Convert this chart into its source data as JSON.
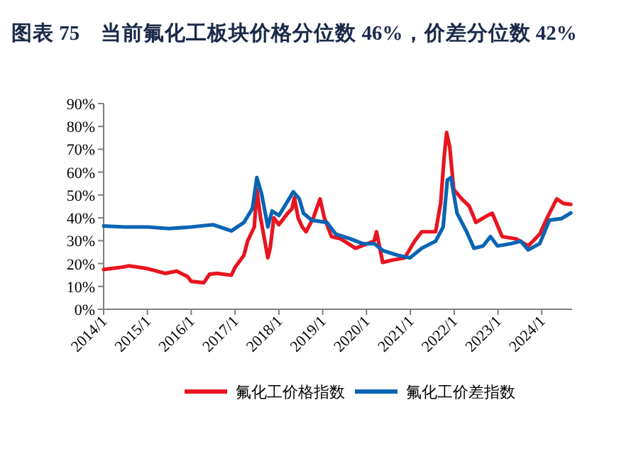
{
  "chart_data": {
    "type": "line",
    "title": "图表 75　当前氟化工板块价格分位数 46%，价差分位数 42%",
    "xlim": [
      "2014-01-01",
      "2024-09-10"
    ],
    "xticks": [
      {
        "value": "2014-01-01",
        "label": "2014/1"
      },
      {
        "value": "2015-01-01",
        "label": "2015/1"
      },
      {
        "value": "2016-01-01",
        "label": "2016/1"
      },
      {
        "value": "2017-01-01",
        "label": "2017/1"
      },
      {
        "value": "2018-01-01",
        "label": "2018/1"
      },
      {
        "value": "2019-01-01",
        "label": "2019/1"
      },
      {
        "value": "2020-01-01",
        "label": "2020/1"
      },
      {
        "value": "2021-01-01",
        "label": "2021/1"
      },
      {
        "value": "2022-01-01",
        "label": "2022/1"
      },
      {
        "value": "2023-01-01",
        "label": "2023/1"
      },
      {
        "value": "2024-01-01",
        "label": "2024/1"
      }
    ],
    "ylim": [
      0,
      90
    ],
    "yticks": [
      {
        "value": 0,
        "label": "0%"
      },
      {
        "value": 10,
        "label": "10%"
      },
      {
        "value": 20,
        "label": "20%"
      },
      {
        "value": 30,
        "label": "30%"
      },
      {
        "value": 40,
        "label": "40%"
      },
      {
        "value": 50,
        "label": "50%"
      },
      {
        "value": 60,
        "label": "60%"
      },
      {
        "value": 70,
        "label": "70%"
      },
      {
        "value": 80,
        "label": "80%"
      },
      {
        "value": 90,
        "label": "90%"
      }
    ],
    "grid": false,
    "legend": "bottom",
    "marker": "none",
    "line_style": "solid",
    "series": [
      {
        "name": "氟化工价格指数",
        "color": "#e8141f",
        "x": [
          "2014-01-01",
          "2014-06-01",
          "2014-08-01",
          "2015-01-01",
          "2015-06-01",
          "2015-09-01",
          "2015-12-01",
          "2016-01-01",
          "2016-04-15",
          "2016-06-01",
          "2016-08-01",
          "2016-12-01",
          "2017-01-01",
          "2017-03-15",
          "2017-04-15",
          "2017-06-10",
          "2017-07-01",
          "2017-08-01",
          "2017-10-01",
          "2017-10-20",
          "2017-11-20",
          "2018-01-01",
          "2018-03-15",
          "2018-04-20",
          "2018-05-10",
          "2018-06-10",
          "2018-07-15",
          "2018-08-15",
          "2018-10-15",
          "2018-12-10",
          "2019-01-15",
          "2019-03-15",
          "2019-06-01",
          "2019-10-01",
          "2020-01-10",
          "2020-03-05",
          "2020-03-25",
          "2020-05-15",
          "2020-08-01",
          "2020-11-15",
          "2021-02-05",
          "2021-04-05",
          "2021-07-30",
          "2021-09-10",
          "2021-10-10",
          "2021-10-30",
          "2021-11-25",
          "2021-12-28",
          "2022-03-05",
          "2022-05-05",
          "2022-07-01",
          "2022-10-05",
          "2022-11-15",
          "2023-02-05",
          "2023-06-01",
          "2023-09-10",
          "2023-12-15",
          "2024-02-15",
          "2024-05-05",
          "2024-07-01",
          "2024-08-30"
        ],
        "values": [
          17.4,
          18.4,
          19,
          17.8,
          15.7,
          16.7,
          14.3,
          12.2,
          11.6,
          15.3,
          15.7,
          14.9,
          18.4,
          23.6,
          29.8,
          36,
          52.5,
          40,
          22.5,
          26.7,
          40,
          37,
          42,
          44,
          48.8,
          40,
          36,
          33.9,
          40,
          48.3,
          40,
          31.8,
          30.8,
          26.7,
          28.7,
          29.8,
          33.9,
          20.5,
          21.5,
          22.5,
          29.8,
          33.9,
          33.9,
          46.3,
          67,
          77.3,
          71,
          52.5,
          48.3,
          45.2,
          38,
          41,
          42,
          31.8,
          30.8,
          27.7,
          32.9,
          40,
          48.3,
          46.3,
          45.9
        ]
      },
      {
        "name": "氟化工价差指数",
        "color": "#0a64b4",
        "x": [
          "2014-01-01",
          "2014-07-01",
          "2015-01-01",
          "2015-07-01",
          "2016-01-01",
          "2016-07-01",
          "2016-12-01",
          "2017-03-15",
          "2017-05-25",
          "2017-07-01",
          "2017-08-10",
          "2017-10-01",
          "2017-11-05",
          "2018-01-01",
          "2018-03-15",
          "2018-05-01",
          "2018-06-20",
          "2018-07-25",
          "2018-10-01",
          "2019-02-05",
          "2019-04-20",
          "2019-08-20",
          "2019-12-01",
          "2020-03-05",
          "2020-05-20",
          "2020-09-20",
          "2020-12-28",
          "2021-04-05",
          "2021-07-30",
          "2021-10-01",
          "2021-11-05",
          "2021-12-05",
          "2022-01-25",
          "2022-04-15",
          "2022-06-15",
          "2022-08-30",
          "2022-10-30",
          "2022-12-28",
          "2023-04-20",
          "2023-07-10",
          "2023-09-10",
          "2023-12-15",
          "2024-03-05",
          "2024-06-15",
          "2024-08-30"
        ],
        "values": [
          36.4,
          36,
          36,
          35.3,
          36,
          37,
          34.3,
          38,
          44,
          57.6,
          50.4,
          36,
          43,
          41,
          47.3,
          51.4,
          48.3,
          42,
          39,
          38,
          32.9,
          30.8,
          28.7,
          28.7,
          25.6,
          23.6,
          22.5,
          26.7,
          29.8,
          36,
          56.6,
          57.6,
          42,
          33.9,
          26.7,
          27.7,
          31.8,
          27.7,
          28.7,
          29.8,
          26,
          28.7,
          39,
          39.7,
          42.1
        ]
      }
    ]
  }
}
